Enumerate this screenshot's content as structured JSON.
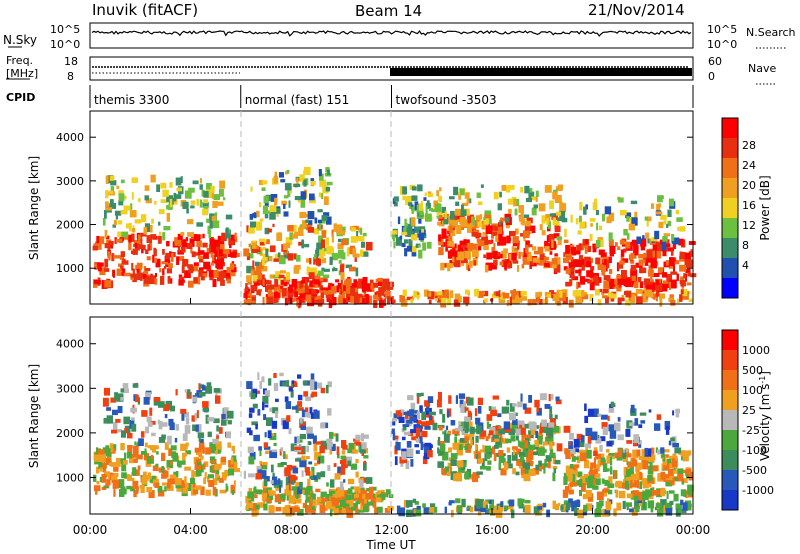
{
  "header": {
    "station": "Inuvik (fitACF)",
    "beam": "Beam 14",
    "date": "21/Nov/2014"
  },
  "noise_panel": {
    "left_label": "N.Sky",
    "left_ticks": [
      "10^5",
      "10^0"
    ],
    "right_ticks": [
      "10^5",
      "10^0"
    ],
    "right_label": "N.Search"
  },
  "freq_panel": {
    "left_label_1": "Freq.",
    "left_label_2": "[MHz]",
    "left_ticks": [
      "18",
      "8"
    ],
    "right_ticks": [
      "60",
      "0"
    ],
    "right_label": "Nave"
  },
  "cpid_panel": {
    "label": "CPID",
    "segments": [
      {
        "name": "themis 3300",
        "start_h": 0,
        "end_h": 6
      },
      {
        "name": "normal (fast) 151",
        "start_h": 6,
        "end_h": 12
      },
      {
        "name": "twofsound -3503",
        "start_h": 12,
        "end_h": 24
      }
    ]
  },
  "chart_data": [
    {
      "type": "heatmap",
      "panel": "power",
      "ylabel": "Slant Range [km]",
      "yticks": [
        1000,
        2000,
        3000,
        4000
      ],
      "ylim": [
        180,
        4600
      ],
      "xlim": [
        0,
        24
      ],
      "colorbar": {
        "label": "Power [dB]",
        "range": [
          0,
          30
        ],
        "ticks": [
          "28",
          "24",
          "20",
          "16",
          "12",
          "8",
          "4"
        ],
        "colors": [
          "#0000ff",
          "#2050b0",
          "#3a8c6a",
          "#6cc040",
          "#f0d020",
          "#f0a020",
          "#f07018",
          "#e83010",
          "#ff0000"
        ]
      },
      "features": [
        {
          "t_start": 0,
          "t_end": 5.9,
          "range_start": 700,
          "range_end": 1500,
          "level": "high"
        },
        {
          "t_start": 6.2,
          "t_end": 11.8,
          "range_start": 200,
          "range_end": 700,
          "level": "high"
        },
        {
          "t_start": 13.8,
          "t_end": 18.5,
          "range_start": 900,
          "range_end": 1900,
          "level": "high"
        },
        {
          "t_start": 19.5,
          "t_end": 23.8,
          "range_start": 500,
          "range_end": 1300,
          "level": "high"
        }
      ]
    },
    {
      "type": "heatmap",
      "panel": "velocity",
      "ylabel": "Slant Range [km]",
      "yticks": [
        1000,
        2000,
        3000,
        4000
      ],
      "ylim": [
        180,
        4600
      ],
      "xlim": [
        0,
        24
      ],
      "colorbar": {
        "label": "Velocity [m s^-1]",
        "ticks": [
          "1000",
          "500",
          "100",
          "25",
          "-25",
          "-100",
          "-500",
          "-1000"
        ],
        "colors": [
          "#1838c8",
          "#2858b8",
          "#3c8c5c",
          "#4aa83c",
          "#b8b8b8",
          "#f0a020",
          "#f07018",
          "#f04010",
          "#ff0000"
        ]
      }
    }
  ],
  "x_axis": {
    "label": "Time UT",
    "ticks": [
      "00:00",
      "04:00",
      "08:00",
      "12:00",
      "16:00",
      "20:00",
      "00:00"
    ]
  }
}
